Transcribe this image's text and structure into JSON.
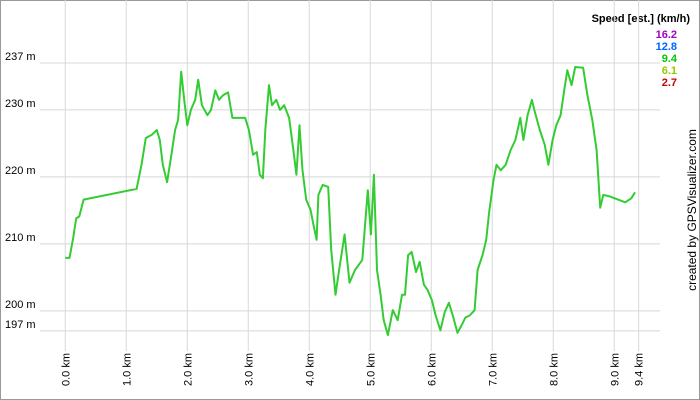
{
  "chart_data": {
    "type": "line",
    "x": [
      0.0,
      0.07,
      0.13,
      0.18,
      0.23,
      0.3,
      1.17,
      1.25,
      1.32,
      1.42,
      1.5,
      1.55,
      1.6,
      1.67,
      1.74,
      1.8,
      1.85,
      1.9,
      1.95,
      2.0,
      2.06,
      2.13,
      2.18,
      2.24,
      2.33,
      2.39,
      2.46,
      2.52,
      2.59,
      2.67,
      2.74,
      2.95,
      3.01,
      3.08,
      3.14,
      3.19,
      3.24,
      3.28,
      3.34,
      3.39,
      3.46,
      3.52,
      3.59,
      3.67,
      3.74,
      3.79,
      3.84,
      3.89,
      3.95,
      4.02,
      4.07,
      4.12,
      4.15,
      4.22,
      4.31,
      4.36,
      4.43,
      4.49,
      4.58,
      4.66,
      4.75,
      4.87,
      4.96,
      5.01,
      5.06,
      5.11,
      5.17,
      5.22,
      5.29,
      5.37,
      5.45,
      5.52,
      5.57,
      5.62,
      5.68,
      5.75,
      5.81,
      5.88,
      5.94,
      6.01,
      6.07,
      6.15,
      6.22,
      6.29,
      6.35,
      6.43,
      6.5,
      6.56,
      6.63,
      6.71,
      6.76,
      6.84,
      6.9,
      6.95,
      7.02,
      7.07,
      7.14,
      7.22,
      7.3,
      7.38,
      7.46,
      7.51,
      7.58,
      7.65,
      7.69,
      7.78,
      7.86,
      7.92,
      7.99,
      8.05,
      8.12,
      8.18,
      8.23,
      8.3,
      8.36,
      8.49,
      8.56,
      8.64,
      8.71,
      8.77,
      8.82,
      8.92,
      9.18,
      9.28,
      9.34
    ],
    "series": [
      {
        "color": "#33cc33",
        "values": [
          207.9,
          207.9,
          210.9,
          213.8,
          214.1,
          216.6,
          218.2,
          221.8,
          225.8,
          226.3,
          227.0,
          225.5,
          221.8,
          219.2,
          223.3,
          227.0,
          228.5,
          235.7,
          231.5,
          227.7,
          230.0,
          231.5,
          234.5,
          230.7,
          229.2,
          230.0,
          232.9,
          231.5,
          232.2,
          232.6,
          228.8,
          228.8,
          227.0,
          223.3,
          223.7,
          220.3,
          219.8,
          227.0,
          233.7,
          230.7,
          231.5,
          230.0,
          230.7,
          228.8,
          224.0,
          220.3,
          227.7,
          221.0,
          216.6,
          215.1,
          212.8,
          210.6,
          217.3,
          218.8,
          218.5,
          209.1,
          202.4,
          206.1,
          211.4,
          204.2,
          206.1,
          207.6,
          218.0,
          211.4,
          220.3,
          206.1,
          202.4,
          198.6,
          196.4,
          200.1,
          198.6,
          202.4,
          202.4,
          208.3,
          208.8,
          205.8,
          207.3,
          203.9,
          203.1,
          201.6,
          199.4,
          197.1,
          199.8,
          201.2,
          199.4,
          196.7,
          197.9,
          199.0,
          199.3,
          200.1,
          206.1,
          208.3,
          210.6,
          214.8,
          219.5,
          221.8,
          221.0,
          221.8,
          224.0,
          225.5,
          228.8,
          225.5,
          229.2,
          231.5,
          230.0,
          227.0,
          224.8,
          221.8,
          225.5,
          227.7,
          229.2,
          232.9,
          235.9,
          233.7,
          236.4,
          236.3,
          232.2,
          228.5,
          224.0,
          215.4,
          217.3,
          217.1,
          216.2,
          216.8,
          217.7
        ]
      }
    ],
    "xlim": [
      -0.25,
      9.75
    ],
    "ylim": [
      194.9,
      246.4
    ],
    "xticks": [
      {
        "value": 0,
        "label": "0.0 km"
      },
      {
        "value": 1,
        "label": "1.0 km"
      },
      {
        "value": 2,
        "label": "2.0 km"
      },
      {
        "value": 3,
        "label": "3.0 km"
      },
      {
        "value": 4,
        "label": "4.0 km"
      },
      {
        "value": 5,
        "label": "5.0 km"
      },
      {
        "value": 6,
        "label": "6.0 km"
      },
      {
        "value": 7,
        "label": "7.0 km"
      },
      {
        "value": 8,
        "label": "8.0 km"
      },
      {
        "value": 9,
        "label": "9.0 km"
      },
      {
        "value": 9.4,
        "label": "9.4 km"
      }
    ],
    "yticks": [
      {
        "value": 197,
        "label": "197 m"
      },
      {
        "value": 200,
        "label": "200 m"
      },
      {
        "value": 210,
        "label": "210 m"
      },
      {
        "value": 220,
        "label": "220 m"
      },
      {
        "value": 230,
        "label": "230 m"
      },
      {
        "value": 237,
        "label": "237 m"
      }
    ],
    "grid": true,
    "speed_legend": {
      "title": "Speed [est.] (km/h)",
      "items": [
        {
          "value": 16.2,
          "color": "#a000c8"
        },
        {
          "value": 12.8,
          "color": "#0064ff"
        },
        {
          "value": 9.4,
          "color": "#00c800"
        },
        {
          "value": 6.1,
          "color": "#96c800"
        },
        {
          "value": 2.7,
          "color": "#c80000"
        }
      ]
    },
    "credit": "created by GPSVisualizer.com"
  }
}
